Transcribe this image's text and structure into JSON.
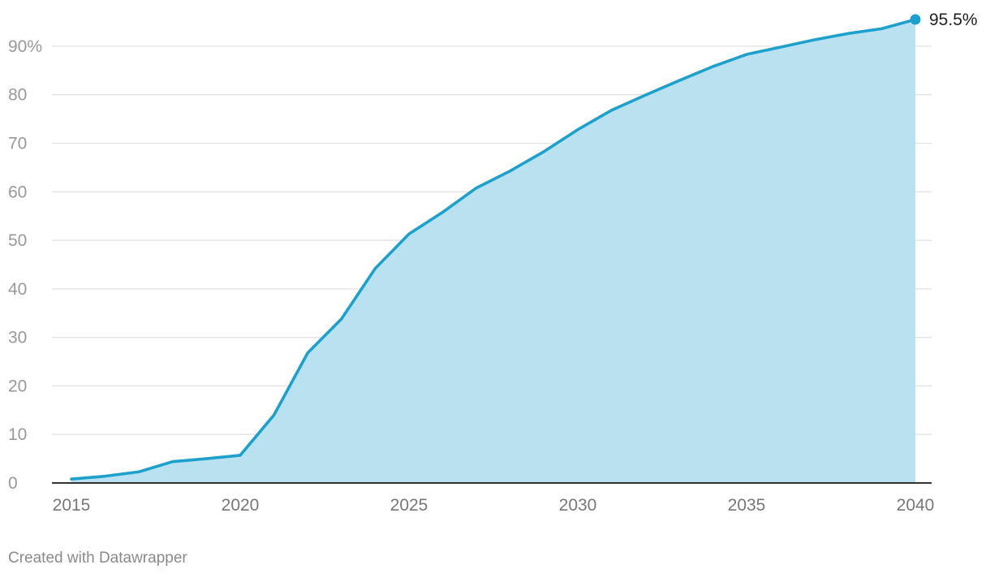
{
  "chart_data": {
    "type": "area",
    "x": [
      2015,
      2016,
      2017,
      2018,
      2019,
      2020,
      2021,
      2022,
      2023,
      2024,
      2025,
      2026,
      2027,
      2028,
      2029,
      2030,
      2031,
      2032,
      2033,
      2034,
      2035,
      2036,
      2037,
      2038,
      2039,
      2040
    ],
    "values": [
      0.8,
      1.4,
      2.3,
      4.4,
      5.0,
      5.7,
      14.0,
      26.8,
      33.8,
      44.2,
      51.3,
      55.8,
      60.8,
      64.3,
      68.3,
      72.8,
      76.8,
      79.9,
      82.9,
      85.8,
      88.3,
      89.8,
      91.3,
      92.6,
      93.6,
      95.5
    ],
    "x_ticks": [
      "2015",
      "2020",
      "2025",
      "2030",
      "2035",
      "2040"
    ],
    "y_ticks": [
      "0",
      "10",
      "20",
      "30",
      "40",
      "50",
      "60",
      "70",
      "80",
      "90%"
    ],
    "y_tick_values": [
      0,
      10,
      20,
      30,
      40,
      50,
      60,
      70,
      80,
      90
    ],
    "xlim": [
      2015,
      2040
    ],
    "ylim": [
      0,
      95.5
    ],
    "end_label": "95.5%",
    "title": "",
    "xlabel": "",
    "ylabel": "",
    "grid": true,
    "colors": {
      "line": "#1da1cc",
      "fill": "#b9e1f0",
      "grid": "#e2e2e2",
      "axis": "#333333",
      "tick_text": "#999999",
      "x_tick_text": "#777777",
      "end_label_text": "#222222"
    }
  },
  "footer": {
    "credit": "Created with Datawrapper"
  }
}
